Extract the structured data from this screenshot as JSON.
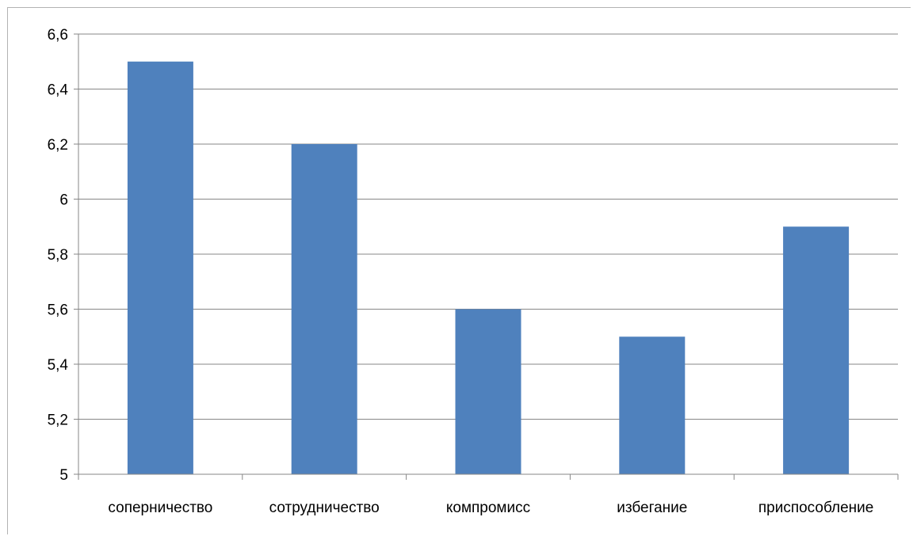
{
  "chart_data": {
    "type": "bar",
    "categories": [
      "соперничество",
      "сотрудничество",
      "компромисс",
      "избегание",
      "приспособление"
    ],
    "values": [
      6.5,
      6.2,
      5.6,
      5.5,
      5.9
    ],
    "ylim": [
      5,
      6.6
    ],
    "yticks": [
      5,
      5.2,
      5.4,
      5.6,
      5.8,
      6,
      6.2,
      6.4,
      6.6
    ],
    "ytick_labels": [
      "5",
      "5,2",
      "5,4",
      "5,6",
      "5,8",
      "6",
      "6,2",
      "6,4",
      "6,6"
    ],
    "grid": true,
    "legend": "none",
    "bar_color": "#4f81bd",
    "grid_color": "#878787"
  }
}
